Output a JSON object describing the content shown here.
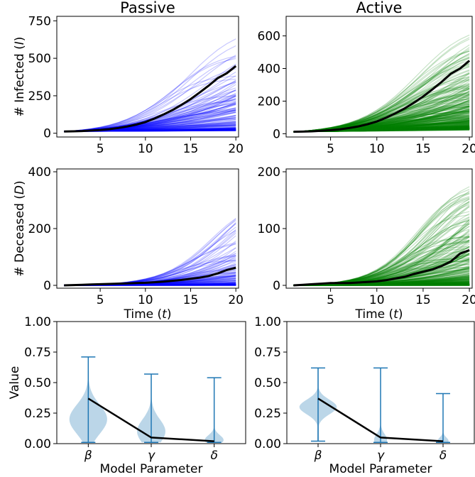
{
  "chart_data": [
    {
      "id": "passive-infected",
      "type": "line",
      "title": "Passive",
      "ylabel": "# Infected (I)",
      "xlabel": "",
      "xlim": [
        0.2,
        20.3
      ],
      "ylim": [
        -25,
        780
      ],
      "xticks": [
        5,
        10,
        15,
        20
      ],
      "yticks": [
        0,
        250,
        500,
        750
      ],
      "mean_series": {
        "name": "mean",
        "color": "#000000",
        "x": [
          1,
          2,
          3,
          4,
          5,
          6,
          7,
          8,
          9,
          10,
          11,
          12,
          13,
          14,
          15,
          16,
          17,
          18,
          19,
          20
        ],
        "y": [
          12,
          13,
          15,
          18,
          22,
          27,
          35,
          45,
          58,
          75,
          98,
          125,
          155,
          190,
          228,
          272,
          318,
          368,
          400,
          448
        ]
      },
      "samples": {
        "color": "#0000ff",
        "count": 160,
        "growth_range": [
          0.02,
          0.38
        ],
        "start": 12,
        "peak_cap": 760
      }
    },
    {
      "id": "active-infected",
      "type": "line",
      "title": "Active",
      "ylabel": "",
      "xlabel": "",
      "xlim": [
        0.2,
        20.3
      ],
      "ylim": [
        -20,
        720
      ],
      "xticks": [
        5,
        10,
        15,
        20
      ],
      "yticks": [
        0,
        200,
        400,
        600
      ],
      "mean_series": {
        "name": "mean",
        "color": "#000000",
        "x": [
          1,
          2,
          3,
          4,
          5,
          6,
          7,
          8,
          9,
          10,
          11,
          12,
          13,
          14,
          15,
          16,
          17,
          18,
          19,
          20
        ],
        "y": [
          12,
          13,
          15,
          18,
          22,
          27,
          35,
          45,
          58,
          75,
          98,
          125,
          155,
          190,
          228,
          272,
          318,
          368,
          400,
          448
        ]
      },
      "samples": {
        "color": "#008000",
        "count": 380,
        "growth_range": [
          0.05,
          0.35
        ],
        "start": 12,
        "peak_cap": 690
      }
    },
    {
      "id": "passive-deceased",
      "type": "line",
      "title": "",
      "ylabel": "# Deceased (D)",
      "xlabel": "Time (t)",
      "xlim": [
        0.2,
        20.3
      ],
      "ylim": [
        -10,
        410
      ],
      "xticks": [
        5,
        10,
        15,
        20
      ],
      "yticks": [
        0,
        200,
        400
      ],
      "mean_series": {
        "name": "mean",
        "color": "#000000",
        "x": [
          1,
          2,
          3,
          4,
          5,
          6,
          7,
          8,
          9,
          10,
          11,
          12,
          13,
          14,
          15,
          16,
          17,
          18,
          19,
          20
        ],
        "y": [
          0,
          1,
          2,
          3,
          4,
          5,
          6,
          7,
          8,
          9,
          11,
          13,
          16,
          19,
          23,
          27,
          33,
          42,
          54,
          62
        ]
      },
      "samples": {
        "color": "#0000ff",
        "count": 160,
        "growth_range": [
          0.0,
          0.42
        ],
        "start": 0,
        "peak_cap": 385
      }
    },
    {
      "id": "active-deceased",
      "type": "line",
      "title": "",
      "ylabel": "",
      "xlabel": "Time (t)",
      "xlim": [
        0.2,
        20.3
      ],
      "ylim": [
        -5,
        205
      ],
      "xticks": [
        5,
        10,
        15,
        20
      ],
      "yticks": [
        0,
        100,
        200
      ],
      "mean_series": {
        "name": "mean",
        "color": "#000000",
        "x": [
          1,
          2,
          3,
          4,
          5,
          6,
          7,
          8,
          9,
          10,
          11,
          12,
          13,
          14,
          15,
          16,
          17,
          18,
          19,
          20
        ],
        "y": [
          0,
          1,
          2,
          3,
          4,
          4,
          4,
          5,
          6,
          7,
          9,
          12,
          15,
          20,
          24,
          28,
          34,
          42,
          56,
          62
        ]
      },
      "samples": {
        "color": "#008000",
        "count": 380,
        "growth_range": [
          0.0,
          0.45
        ],
        "start": 0,
        "peak_cap": 200
      }
    },
    {
      "id": "passive-params",
      "type": "violin",
      "title": "",
      "ylabel": "Value",
      "xlabel": "Model Parameter",
      "categories": [
        "β",
        "γ",
        "δ"
      ],
      "ylim": [
        0.0,
        1.0
      ],
      "yticks": [
        "0.00",
        "0.25",
        "0.50",
        "0.75",
        "1.00"
      ],
      "violins": [
        {
          "min": 0.01,
          "max": 0.71,
          "mean": 0.37,
          "mode": 0.2,
          "spread": 0.12,
          "width": 1.0
        },
        {
          "min": 0.01,
          "max": 0.57,
          "mean": 0.05,
          "mode": 0.1,
          "spread": 0.1,
          "width": 0.75
        },
        {
          "min": 0.01,
          "max": 0.54,
          "mean": 0.02,
          "mode": 0.03,
          "spread": 0.04,
          "width": 0.5
        }
      ],
      "mean_line_color": "#000000",
      "violin_color": "#1f77b4"
    },
    {
      "id": "active-params",
      "type": "violin",
      "title": "",
      "ylabel": "",
      "xlabel": "Model Parameter",
      "categories": [
        "β",
        "γ",
        "δ"
      ],
      "ylim": [
        0.0,
        1.0
      ],
      "yticks": [
        "0.00",
        "0.25",
        "0.50",
        "0.75",
        "1.00"
      ],
      "violins": [
        {
          "min": 0.02,
          "max": 0.62,
          "mean": 0.37,
          "mode": 0.3,
          "spread": 0.06,
          "width": 1.0
        },
        {
          "min": 0.01,
          "max": 0.62,
          "mean": 0.05,
          "mode": 0.03,
          "spread": 0.05,
          "width": 0.35
        },
        {
          "min": 0.01,
          "max": 0.41,
          "mean": 0.02,
          "mode": 0.02,
          "spread": 0.03,
          "width": 0.3
        }
      ],
      "mean_line_color": "#000000",
      "violin_color": "#1f77b4"
    }
  ]
}
